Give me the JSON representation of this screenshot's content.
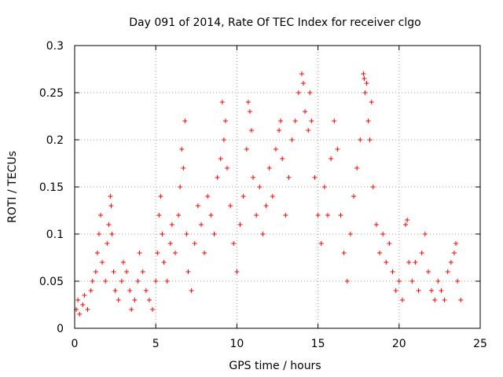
{
  "chart_data": {
    "type": "scatter",
    "title": "Day 091 of 2014, Rate Of TEC Index for receiver clgo",
    "xlabel": "GPS time / hours",
    "ylabel": "ROTI / TECUs",
    "xlim": [
      0,
      25
    ],
    "ylim": [
      0,
      0.3
    ],
    "xticks": [
      0,
      5,
      10,
      15,
      20,
      25
    ],
    "xtick_labels": [
      "0",
      "5",
      "10",
      "15",
      "20",
      "25"
    ],
    "yticks": [
      0,
      0.05,
      0.1,
      0.15,
      0.2,
      0.25,
      0.3
    ],
    "ytick_labels": [
      "0",
      "0.05",
      "0.1",
      "0.15",
      "0.2",
      "0.25",
      "0.3"
    ],
    "grid": true,
    "marker": "plus",
    "color": "#ff0000",
    "series": [
      {
        "name": "ROTI",
        "points": [
          [
            0.1,
            0.02
          ],
          [
            0.2,
            0.03
          ],
          [
            0.3,
            0.015
          ],
          [
            0.5,
            0.025
          ],
          [
            0.6,
            0.035
          ],
          [
            0.8,
            0.02
          ],
          [
            1.0,
            0.04
          ],
          [
            1.1,
            0.05
          ],
          [
            1.3,
            0.06
          ],
          [
            1.4,
            0.08
          ],
          [
            1.5,
            0.1
          ],
          [
            1.6,
            0.12
          ],
          [
            1.7,
            0.07
          ],
          [
            1.9,
            0.05
          ],
          [
            2.0,
            0.09
          ],
          [
            2.1,
            0.11
          ],
          [
            2.2,
            0.14
          ],
          [
            2.25,
            0.13
          ],
          [
            2.3,
            0.1
          ],
          [
            2.4,
            0.06
          ],
          [
            2.5,
            0.04
          ],
          [
            2.7,
            0.03
          ],
          [
            2.9,
            0.05
          ],
          [
            3.0,
            0.07
          ],
          [
            3.2,
            0.06
          ],
          [
            3.4,
            0.04
          ],
          [
            3.5,
            0.02
          ],
          [
            3.7,
            0.03
          ],
          [
            3.9,
            0.05
          ],
          [
            4.0,
            0.08
          ],
          [
            4.2,
            0.06
          ],
          [
            4.4,
            0.04
          ],
          [
            4.6,
            0.03
          ],
          [
            4.8,
            0.02
          ],
          [
            5.0,
            0.05
          ],
          [
            5.1,
            0.08
          ],
          [
            5.2,
            0.12
          ],
          [
            5.3,
            0.14
          ],
          [
            5.4,
            0.1
          ],
          [
            5.5,
            0.07
          ],
          [
            5.7,
            0.05
          ],
          [
            5.9,
            0.09
          ],
          [
            6.0,
            0.11
          ],
          [
            6.2,
            0.08
          ],
          [
            6.4,
            0.12
          ],
          [
            6.5,
            0.15
          ],
          [
            6.6,
            0.19
          ],
          [
            6.7,
            0.17
          ],
          [
            6.8,
            0.22
          ],
          [
            6.9,
            0.1
          ],
          [
            7.0,
            0.06
          ],
          [
            7.2,
            0.04
          ],
          [
            7.4,
            0.09
          ],
          [
            7.6,
            0.13
          ],
          [
            7.8,
            0.11
          ],
          [
            8.0,
            0.08
          ],
          [
            8.2,
            0.14
          ],
          [
            8.4,
            0.12
          ],
          [
            8.6,
            0.1
          ],
          [
            8.8,
            0.16
          ],
          [
            9.0,
            0.18
          ],
          [
            9.1,
            0.24
          ],
          [
            9.2,
            0.2
          ],
          [
            9.3,
            0.22
          ],
          [
            9.4,
            0.17
          ],
          [
            9.6,
            0.13
          ],
          [
            9.8,
            0.09
          ],
          [
            10.0,
            0.06
          ],
          [
            10.2,
            0.11
          ],
          [
            10.4,
            0.14
          ],
          [
            10.6,
            0.19
          ],
          [
            10.7,
            0.24
          ],
          [
            10.8,
            0.23
          ],
          [
            10.9,
            0.21
          ],
          [
            11.0,
            0.16
          ],
          [
            11.2,
            0.12
          ],
          [
            11.4,
            0.15
          ],
          [
            11.6,
            0.1
          ],
          [
            11.8,
            0.13
          ],
          [
            12.0,
            0.17
          ],
          [
            12.2,
            0.14
          ],
          [
            12.4,
            0.19
          ],
          [
            12.6,
            0.21
          ],
          [
            12.7,
            0.22
          ],
          [
            12.8,
            0.18
          ],
          [
            13.0,
            0.12
          ],
          [
            13.2,
            0.16
          ],
          [
            13.4,
            0.2
          ],
          [
            13.6,
            0.22
          ],
          [
            13.8,
            0.25
          ],
          [
            14.0,
            0.27
          ],
          [
            14.1,
            0.26
          ],
          [
            14.2,
            0.23
          ],
          [
            14.4,
            0.21
          ],
          [
            14.5,
            0.25
          ],
          [
            14.6,
            0.22
          ],
          [
            14.8,
            0.16
          ],
          [
            15.0,
            0.12
          ],
          [
            15.2,
            0.09
          ],
          [
            15.4,
            0.15
          ],
          [
            15.6,
            0.12
          ],
          [
            15.8,
            0.18
          ],
          [
            16.0,
            0.22
          ],
          [
            16.2,
            0.19
          ],
          [
            16.4,
            0.12
          ],
          [
            16.6,
            0.08
          ],
          [
            16.8,
            0.05
          ],
          [
            17.0,
            0.1
          ],
          [
            17.2,
            0.14
          ],
          [
            17.4,
            0.17
          ],
          [
            17.6,
            0.2
          ],
          [
            17.8,
            0.27
          ],
          [
            17.85,
            0.265
          ],
          [
            17.9,
            0.25
          ],
          [
            18.0,
            0.26
          ],
          [
            18.1,
            0.22
          ],
          [
            18.2,
            0.2
          ],
          [
            18.3,
            0.24
          ],
          [
            18.4,
            0.15
          ],
          [
            18.6,
            0.11
          ],
          [
            18.8,
            0.08
          ],
          [
            19.0,
            0.1
          ],
          [
            19.2,
            0.07
          ],
          [
            19.4,
            0.09
          ],
          [
            19.6,
            0.06
          ],
          [
            19.8,
            0.04
          ],
          [
            20.0,
            0.05
          ],
          [
            20.2,
            0.03
          ],
          [
            20.4,
            0.11
          ],
          [
            20.5,
            0.115
          ],
          [
            20.6,
            0.07
          ],
          [
            20.8,
            0.05
          ],
          [
            21.0,
            0.07
          ],
          [
            21.2,
            0.04
          ],
          [
            21.4,
            0.08
          ],
          [
            21.6,
            0.1
          ],
          [
            21.8,
            0.06
          ],
          [
            22.0,
            0.04
          ],
          [
            22.2,
            0.03
          ],
          [
            22.4,
            0.05
          ],
          [
            22.6,
            0.04
          ],
          [
            22.8,
            0.03
          ],
          [
            23.0,
            0.06
          ],
          [
            23.2,
            0.07
          ],
          [
            23.4,
            0.08
          ],
          [
            23.5,
            0.09
          ],
          [
            23.6,
            0.05
          ],
          [
            23.8,
            0.03
          ]
        ]
      }
    ]
  }
}
